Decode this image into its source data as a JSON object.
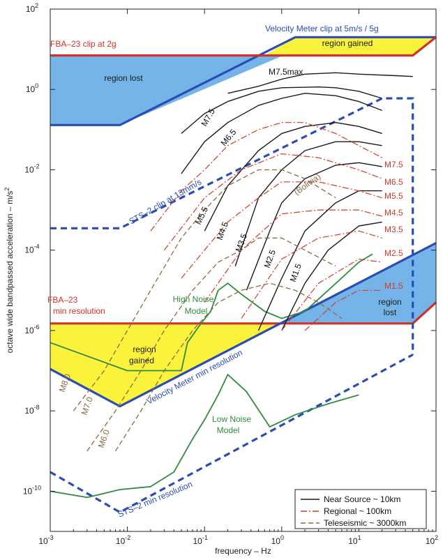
{
  "chart_data": {
    "type": "line",
    "xlabel": "frequency  –  Hz",
    "ylabel": "octave wide bandpassed acceleration  –  m/s²",
    "x_scale": "log",
    "y_scale": "log",
    "xlim": [
      0.001,
      100
    ],
    "ylim": [
      1e-11,
      100
    ],
    "x_ticks": [
      {
        "v": 0.001,
        "b": "10",
        "e": "-3"
      },
      {
        "v": 0.01,
        "b": "10",
        "e": "-2"
      },
      {
        "v": 0.1,
        "b": "10",
        "e": "-1"
      },
      {
        "v": 1,
        "b": "10",
        "e": "0"
      },
      {
        "v": 10,
        "b": "10",
        "e": "1"
      },
      {
        "v": 100,
        "b": "10",
        "e": "2"
      }
    ],
    "y_ticks": [
      {
        "v": 1e-10,
        "b": "10",
        "e": "-10"
      },
      {
        "v": 1e-08,
        "b": "10",
        "e": "-8"
      },
      {
        "v": 1e-06,
        "b": "10",
        "e": "-6"
      },
      {
        "v": 0.0001,
        "b": "10",
        "e": "-4"
      },
      {
        "v": 0.01,
        "b": "10",
        "e": "-2"
      },
      {
        "v": 1,
        "b": "10",
        "e": "0"
      },
      {
        "v": 100,
        "b": "10",
        "e": "2"
      }
    ],
    "colors": {
      "near": "#1a1a1a",
      "regional": "#d23a2a",
      "teleseismic": "#8b6a3e",
      "noise": "#2e8b3f",
      "sts2": "#2a4db5",
      "velmeter": "#2a4db5",
      "fba": "#d2302a",
      "lost_fill": "#74b4e8",
      "gained_fill": "#fbf23c"
    },
    "regions": [
      {
        "kind": "lost",
        "label": "region lost",
        "pts": [
          [
            0.001,
            1.2
          ],
          [
            0.001,
            7
          ],
          [
            1.05,
            7
          ],
          [
            0.008,
            0.13
          ],
          [
            0.001,
            0.13
          ]
        ]
      },
      {
        "kind": "gained",
        "label": "region gained",
        "pts": [
          [
            0.6,
            7
          ],
          [
            1.5,
            20
          ],
          [
            100,
            20
          ],
          [
            50,
            7
          ]
        ]
      },
      {
        "kind": "gained",
        "label": "region gained",
        "pts": [
          [
            0.001,
            1.5e-06
          ],
          [
            0.001,
            1.1e-07
          ],
          [
            0.008,
            1.3e-08
          ],
          [
            0.95,
            1.5e-06
          ]
        ]
      },
      {
        "kind": "lost",
        "label": "region lost",
        "pts": [
          [
            0.95,
            1.5e-06
          ],
          [
            100,
            0.00015
          ],
          [
            100,
            5e-06
          ],
          [
            50,
            1.5e-06
          ]
        ]
      }
    ],
    "boundaries": [
      {
        "name": "Velocity Meter clip at 5m/s / 5g",
        "style": "solid",
        "color": "velmeter",
        "pts": [
          [
            0.001,
            0.13
          ],
          [
            0.008,
            0.13
          ],
          [
            1.5,
            20
          ],
          [
            100,
            20
          ]
        ]
      },
      {
        "name": "FBA-23 clip at 2g",
        "style": "solid",
        "color": "fba",
        "pts": [
          [
            0.001,
            7
          ],
          [
            50,
            7
          ],
          [
            100,
            20
          ]
        ]
      },
      {
        "name": "FBA-23 min resolution",
        "style": "solid",
        "color": "fba",
        "pts": [
          [
            0.001,
            1.5e-06
          ],
          [
            50,
            1.5e-06
          ],
          [
            100,
            5e-06
          ]
        ]
      },
      {
        "name": "Velocity Meter min resolution",
        "style": "solid",
        "color": "velmeter",
        "pts": [
          [
            0.001,
            1.1e-07
          ],
          [
            0.008,
            1.3e-08
          ],
          [
            100,
            0.00015
          ]
        ]
      },
      {
        "name": "STS-2 clip at 13mm/s",
        "style": "dashed",
        "color": "sts2",
        "pts": [
          [
            0.001,
            0.00035
          ],
          [
            0.008,
            0.00035
          ],
          [
            20,
            0.6
          ],
          [
            50,
            0.6
          ],
          [
            50,
            2.5e-07
          ]
        ]
      },
      {
        "name": "STS-2 min resolution",
        "style": "dashed",
        "color": "sts2",
        "pts": [
          [
            0.001,
            3e-10
          ],
          [
            0.008,
            3e-11
          ],
          [
            50,
            2.5e-07
          ]
        ]
      }
    ],
    "series": [
      {
        "name": "High Noise Model",
        "group": "noise",
        "pts": [
          [
            0.001,
            5e-07
          ],
          [
            0.01,
            1e-07
          ],
          [
            0.05,
            1e-07
          ],
          [
            0.06,
            5e-07
          ],
          [
            0.09,
            1.5e-06
          ],
          [
            0.12,
            3e-06
          ],
          [
            0.15,
            1e-05
          ],
          [
            0.2,
            1.5e-05
          ],
          [
            0.3,
            8e-06
          ],
          [
            0.6,
            3e-06
          ],
          [
            1,
            2e-06
          ],
          [
            2,
            3e-06
          ],
          [
            4,
            1e-05
          ],
          [
            10,
            5e-05
          ],
          [
            15,
            8e-05
          ]
        ]
      },
      {
        "name": "Low Noise Model",
        "group": "noise",
        "pts": [
          [
            0.001,
            1e-10
          ],
          [
            0.003,
            7e-11
          ],
          [
            0.008,
            1.1e-10
          ],
          [
            0.02,
            1.3e-10
          ],
          [
            0.04,
            3e-10
          ],
          [
            0.07,
            2e-09
          ],
          [
            0.1,
            6e-09
          ],
          [
            0.15,
            2.5e-08
          ],
          [
            0.2,
            8e-08
          ],
          [
            0.35,
            3e-08
          ],
          [
            0.7,
            4e-09
          ],
          [
            1.5,
            8e-09
          ],
          [
            4,
            1.5e-08
          ],
          [
            10,
            2.5e-08
          ]
        ]
      },
      {
        "label": "M7.5max",
        "group": "near",
        "pts": [
          [
            0.2,
            0.8
          ],
          [
            0.5,
            1.2
          ],
          [
            1,
            1.8
          ],
          [
            2,
            2.4
          ],
          [
            5,
            2.6
          ],
          [
            10,
            2.4
          ],
          [
            30,
            2.2
          ],
          [
            50,
            2.1
          ]
        ]
      },
      {
        "label": "M7.5",
        "group": "near",
        "pts": [
          [
            0.05,
            0.08
          ],
          [
            0.1,
            0.25
          ],
          [
            0.2,
            0.5
          ],
          [
            0.5,
            0.9
          ],
          [
            1,
            1.1
          ],
          [
            3,
            1.15
          ],
          [
            5,
            1.1
          ],
          [
            10,
            0.9
          ],
          [
            20,
            0.6
          ]
        ]
      },
      {
        "label": "M6.5",
        "group": "near",
        "pts": [
          [
            0.05,
            0.008
          ],
          [
            0.1,
            0.05
          ],
          [
            0.2,
            0.15
          ],
          [
            0.5,
            0.4
          ],
          [
            1,
            0.6
          ],
          [
            2,
            0.8
          ],
          [
            5,
            0.7
          ],
          [
            10,
            0.5
          ],
          [
            20,
            0.3
          ]
        ]
      },
      {
        "label": "M5.5",
        "group": "near",
        "pts": [
          [
            0.1,
            0.0003
          ],
          [
            0.2,
            0.004
          ],
          [
            0.5,
            0.03
          ],
          [
            1,
            0.08
          ],
          [
            2,
            0.12
          ],
          [
            5,
            0.15
          ],
          [
            10,
            0.12
          ],
          [
            20,
            0.08
          ]
        ]
      },
      {
        "label": "M4.5",
        "group": "near",
        "pts": [
          [
            0.25,
            4e-05
          ],
          [
            0.5,
            0.002
          ],
          [
            1,
            0.01
          ],
          [
            2,
            0.03
          ],
          [
            5,
            0.05
          ],
          [
            10,
            0.05
          ],
          [
            20,
            0.04
          ]
        ]
      },
      {
        "label": "M3.5",
        "group": "near",
        "pts": [
          [
            0.35,
            1e-05
          ],
          [
            0.7,
            0.0003
          ],
          [
            1,
            0.0015
          ],
          [
            2,
            0.006
          ],
          [
            5,
            0.013
          ],
          [
            10,
            0.015
          ],
          [
            20,
            0.012
          ]
        ]
      },
      {
        "label": "M2.5",
        "group": "near",
        "pts": [
          [
            0.5,
            1e-06
          ],
          [
            1,
            2e-05
          ],
          [
            2,
            0.0003
          ],
          [
            5,
            0.0015
          ],
          [
            10,
            0.003
          ],
          [
            20,
            0.003
          ]
        ]
      },
      {
        "label": "M1.5",
        "group": "near",
        "pts": [
          [
            1,
            1e-06
          ],
          [
            2,
            1.5e-05
          ],
          [
            4,
            0.0001
          ],
          [
            10,
            0.0004
          ],
          [
            20,
            0.0005
          ]
        ]
      },
      {
        "label": "M7.5",
        "group": "regional",
        "pts": [
          [
            0.02,
            0.0003
          ],
          [
            0.05,
            0.003
          ],
          [
            0.1,
            0.01
          ],
          [
            0.2,
            0.04
          ],
          [
            0.5,
            0.1
          ],
          [
            1,
            0.15
          ],
          [
            2,
            0.15
          ],
          [
            5,
            0.08
          ],
          [
            10,
            0.04
          ],
          [
            20,
            0.02
          ]
        ]
      },
      {
        "label": "M6.5",
        "group": "regional",
        "pts": [
          [
            0.03,
            0.0001
          ],
          [
            0.1,
            0.002
          ],
          [
            0.3,
            0.01
          ],
          [
            1,
            0.025
          ],
          [
            3,
            0.02
          ],
          [
            10,
            0.01
          ],
          [
            20,
            0.006
          ]
        ]
      },
      {
        "label": "M5.5",
        "group": "regional",
        "pts": [
          [
            0.05,
            2e-05
          ],
          [
            0.2,
            0.0005
          ],
          [
            0.5,
            0.002
          ],
          [
            1,
            0.005
          ],
          [
            3,
            0.005
          ],
          [
            10,
            0.003
          ],
          [
            20,
            0.002
          ]
        ]
      },
      {
        "label": "M4.5",
        "group": "regional",
        "pts": [
          [
            0.1,
            5e-06
          ],
          [
            0.3,
            0.0001
          ],
          [
            1,
            0.0008
          ],
          [
            3,
            0.001
          ],
          [
            10,
            0.001
          ],
          [
            20,
            0.0007
          ]
        ]
      },
      {
        "label": "M3.5",
        "group": "regional",
        "pts": [
          [
            0.3,
            2e-06
          ],
          [
            1,
            6e-05
          ],
          [
            3,
            0.0002
          ],
          [
            10,
            0.0003
          ],
          [
            20,
            0.0002
          ]
        ]
      },
      {
        "label": "M2.5",
        "group": "regional",
        "pts": [
          [
            1,
            1e-06
          ],
          [
            3,
            1.5e-05
          ],
          [
            10,
            6e-05
          ],
          [
            20,
            5e-05
          ]
        ]
      },
      {
        "label": "M1.5",
        "group": "regional",
        "pts": [
          [
            2,
            1e-06
          ],
          [
            5,
            5e-06
          ],
          [
            10,
            1e-05
          ],
          [
            20,
            1e-05
          ]
        ]
      },
      {
        "label": "M8.0",
        "group": "teleseismic",
        "pts": [
          [
            0.002,
            1e-08
          ],
          [
            0.005,
            1e-07
          ],
          [
            0.01,
            1e-06
          ],
          [
            0.02,
            1e-05
          ],
          [
            0.05,
            0.0002
          ],
          [
            0.1,
            0.001
          ],
          [
            0.2,
            0.004
          ],
          [
            0.5,
            0.01
          ],
          [
            1,
            0.01
          ],
          [
            2,
            0.006
          ],
          [
            5,
            0.002
          ]
        ]
      },
      {
        "label": "M7.0",
        "group": "teleseismic",
        "pts": [
          [
            0.003,
            1e-09
          ],
          [
            0.007,
            1e-08
          ],
          [
            0.015,
            1e-07
          ],
          [
            0.03,
            1e-06
          ],
          [
            0.07,
            1e-05
          ],
          [
            0.15,
            5e-05
          ],
          [
            0.3,
            0.0001
          ],
          [
            0.5,
            0.0002
          ],
          [
            1,
            0.0002
          ],
          [
            2,
            0.0001
          ],
          [
            5,
            4e-05
          ]
        ]
      },
      {
        "label": "M6.0",
        "group": "teleseismic",
        "pts": [
          [
            0.007,
            1e-09
          ],
          [
            0.015,
            1e-08
          ],
          [
            0.03,
            1e-07
          ],
          [
            0.07,
            1e-06
          ],
          [
            0.15,
            5e-06
          ],
          [
            0.3,
            1e-05
          ],
          [
            0.7,
            1.5e-05
          ],
          [
            1.5,
            1e-05
          ],
          [
            3,
            5e-06
          ],
          [
            6,
            2e-06
          ]
        ]
      }
    ],
    "annotations": [
      {
        "text": "FBA–23 clip at 2g",
        "color": "fba"
      },
      {
        "text": "Velocity Meter clip at 5m/s / 5g",
        "color": "velmeter"
      },
      {
        "text": "region gained",
        "color": "near"
      },
      {
        "text": "region lost",
        "color": "near"
      },
      {
        "text": "STS–2 clip at 13mm/s",
        "color": "sts2"
      },
      {
        "text": "(Bolivia)",
        "color": "teleseismic"
      },
      {
        "text": "FBA–23",
        "color": "fba"
      },
      {
        "text": "min resolution",
        "color": "fba"
      },
      {
        "text": "High Noise",
        "color": "noise"
      },
      {
        "text": "Model",
        "color": "noise"
      },
      {
        "text": "region",
        "color": "near"
      },
      {
        "text": "lost",
        "color": "near"
      },
      {
        "text": "region",
        "color": "near"
      },
      {
        "text": "gained",
        "color": "near"
      },
      {
        "text": "Velocity Meter min resolution",
        "color": "velmeter"
      },
      {
        "text": "Low Noise",
        "color": "noise"
      },
      {
        "text": "Model",
        "color": "noise"
      },
      {
        "text": "STS–2 min resolution",
        "color": "sts2"
      }
    ],
    "legend": {
      "position": "bottom-right",
      "items": [
        {
          "label": "Near Source ~ 10km",
          "group": "near"
        },
        {
          "label": "Regional ~ 100km",
          "group": "regional"
        },
        {
          "label": "Teleseismic ~ 3000km",
          "group": "teleseismic"
        }
      ]
    },
    "grid": false
  }
}
